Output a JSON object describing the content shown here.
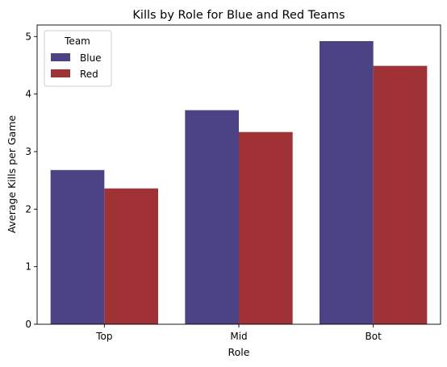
{
  "chart_data": {
    "type": "bar",
    "title": "Kills by Role for Blue and Red Teams",
    "xlabel": "Role",
    "ylabel": "Average Kills per Game",
    "categories": [
      "Top",
      "Mid",
      "Bot"
    ],
    "series": [
      {
        "name": "Blue",
        "color": "#4c4387",
        "values": [
          2.68,
          3.72,
          4.92
        ]
      },
      {
        "name": "Red",
        "color": "#a03134",
        "values": [
          2.36,
          3.34,
          4.49
        ]
      }
    ],
    "ylim": [
      0,
      5.2
    ],
    "yticks": [
      0,
      1,
      2,
      3,
      4,
      5
    ],
    "grid": false,
    "legend": {
      "title": "Team",
      "placement": "top-left"
    }
  }
}
